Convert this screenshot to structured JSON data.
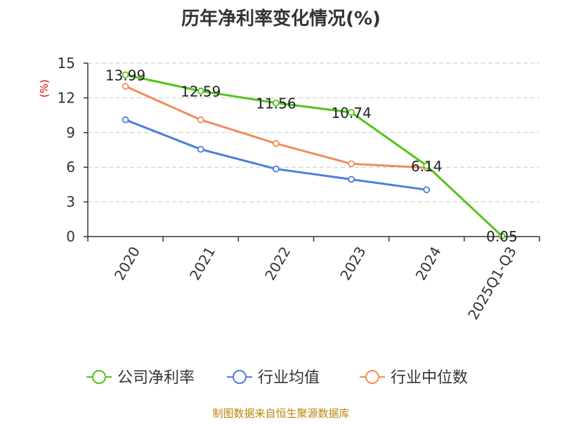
{
  "chart_data": {
    "type": "line",
    "title": "历年净利率变化情况(%)",
    "ylabel": "(%)",
    "categories": [
      "2020",
      "2021",
      "2022",
      "2023",
      "2024",
      "2025Q1-Q3"
    ],
    "ylim": [
      0,
      15
    ],
    "yticks": [
      0,
      3,
      6,
      9,
      12,
      15
    ],
    "grid": true,
    "legend_position": "bottom",
    "series": [
      {
        "name": "公司净利率",
        "values": [
          13.99,
          12.59,
          11.56,
          10.74,
          6.14,
          0.05
        ],
        "color": "#52c41a",
        "show_labels": true
      },
      {
        "name": "行业均值",
        "values": [
          10.1,
          7.55,
          5.85,
          4.95,
          4.05,
          null
        ],
        "color": "#4a7fdb",
        "show_labels": false
      },
      {
        "name": "行业中位数",
        "values": [
          13.0,
          10.1,
          8.05,
          6.3,
          5.95,
          null
        ],
        "color": "#f28c5a",
        "show_labels": false
      }
    ]
  },
  "source_note": "制图数据来自恒生聚源数据库"
}
